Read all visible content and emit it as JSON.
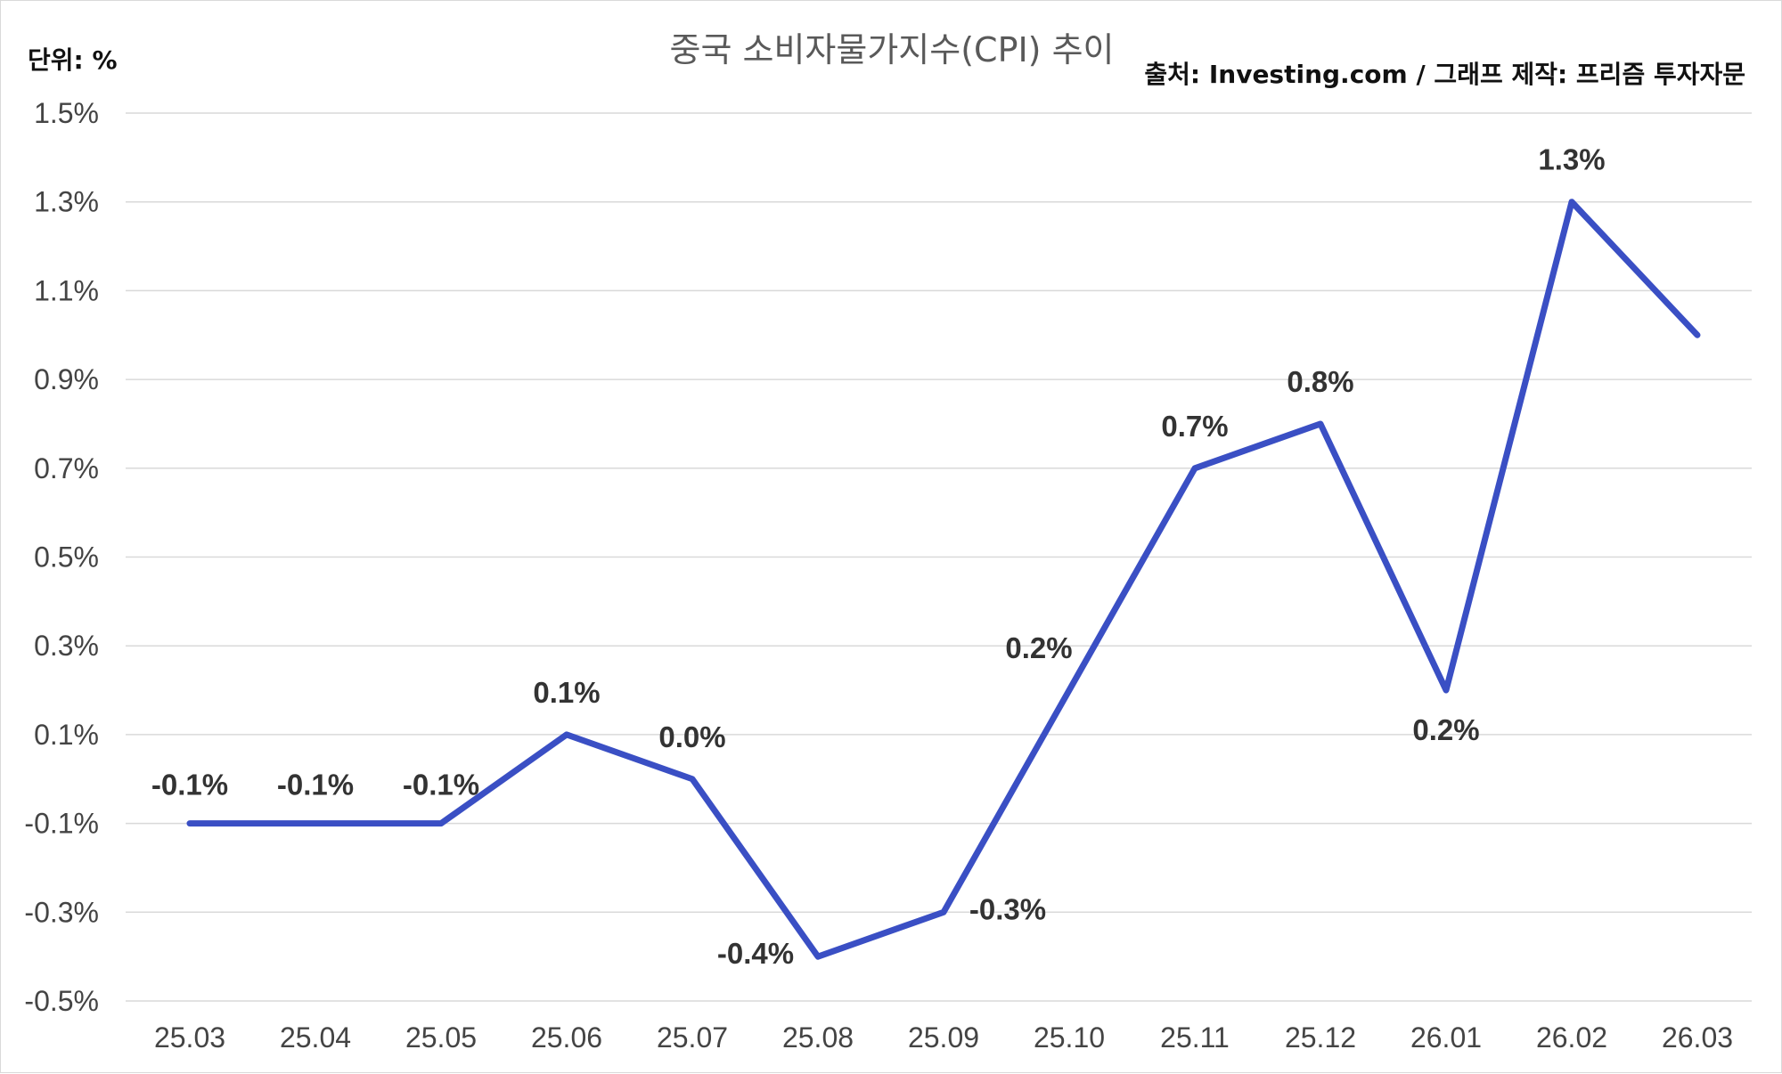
{
  "chart_data": {
    "type": "line",
    "title": "중국 소비자물가지수(CPI) 추이",
    "unit_label": "단위: %",
    "source": "출처: Investing.com / 그래프 제작: 프리즘 투자자문",
    "categories": [
      "25.03",
      "25.04",
      "25.05",
      "25.06",
      "25.07",
      "25.08",
      "25.09",
      "25.10",
      "25.11",
      "25.12",
      "26.01",
      "26.02",
      "26.03"
    ],
    "series": [
      {
        "values": [
          -0.1,
          -0.1,
          -0.1,
          0.1,
          0.0,
          -0.4,
          -0.3,
          0.2,
          0.7,
          0.8,
          0.2,
          1.3,
          1.0
        ],
        "labels": [
          "-0.1%",
          "-0.1%",
          "-0.1%",
          "0.1%",
          "0.0%",
          "-0.4%",
          "-0.3%",
          "0.2%",
          "0.7%",
          "0.8%",
          "0.2%",
          "1.3%",
          "1.0%"
        ]
      }
    ],
    "y_ticks": [
      "1.5%",
      "1.3%",
      "1.1%",
      "0.9%",
      "0.7%",
      "0.5%",
      "0.3%",
      "0.1%",
      "-0.1%",
      "-0.3%",
      "-0.5%"
    ],
    "y_tick_values": [
      1.5,
      1.3,
      1.1,
      0.9,
      0.7,
      0.5,
      0.3,
      0.1,
      -0.1,
      -0.3,
      -0.5
    ],
    "ylim": [
      -0.5,
      1.5
    ],
    "grid": true,
    "legend": "none",
    "color": "#3a4fc4"
  }
}
